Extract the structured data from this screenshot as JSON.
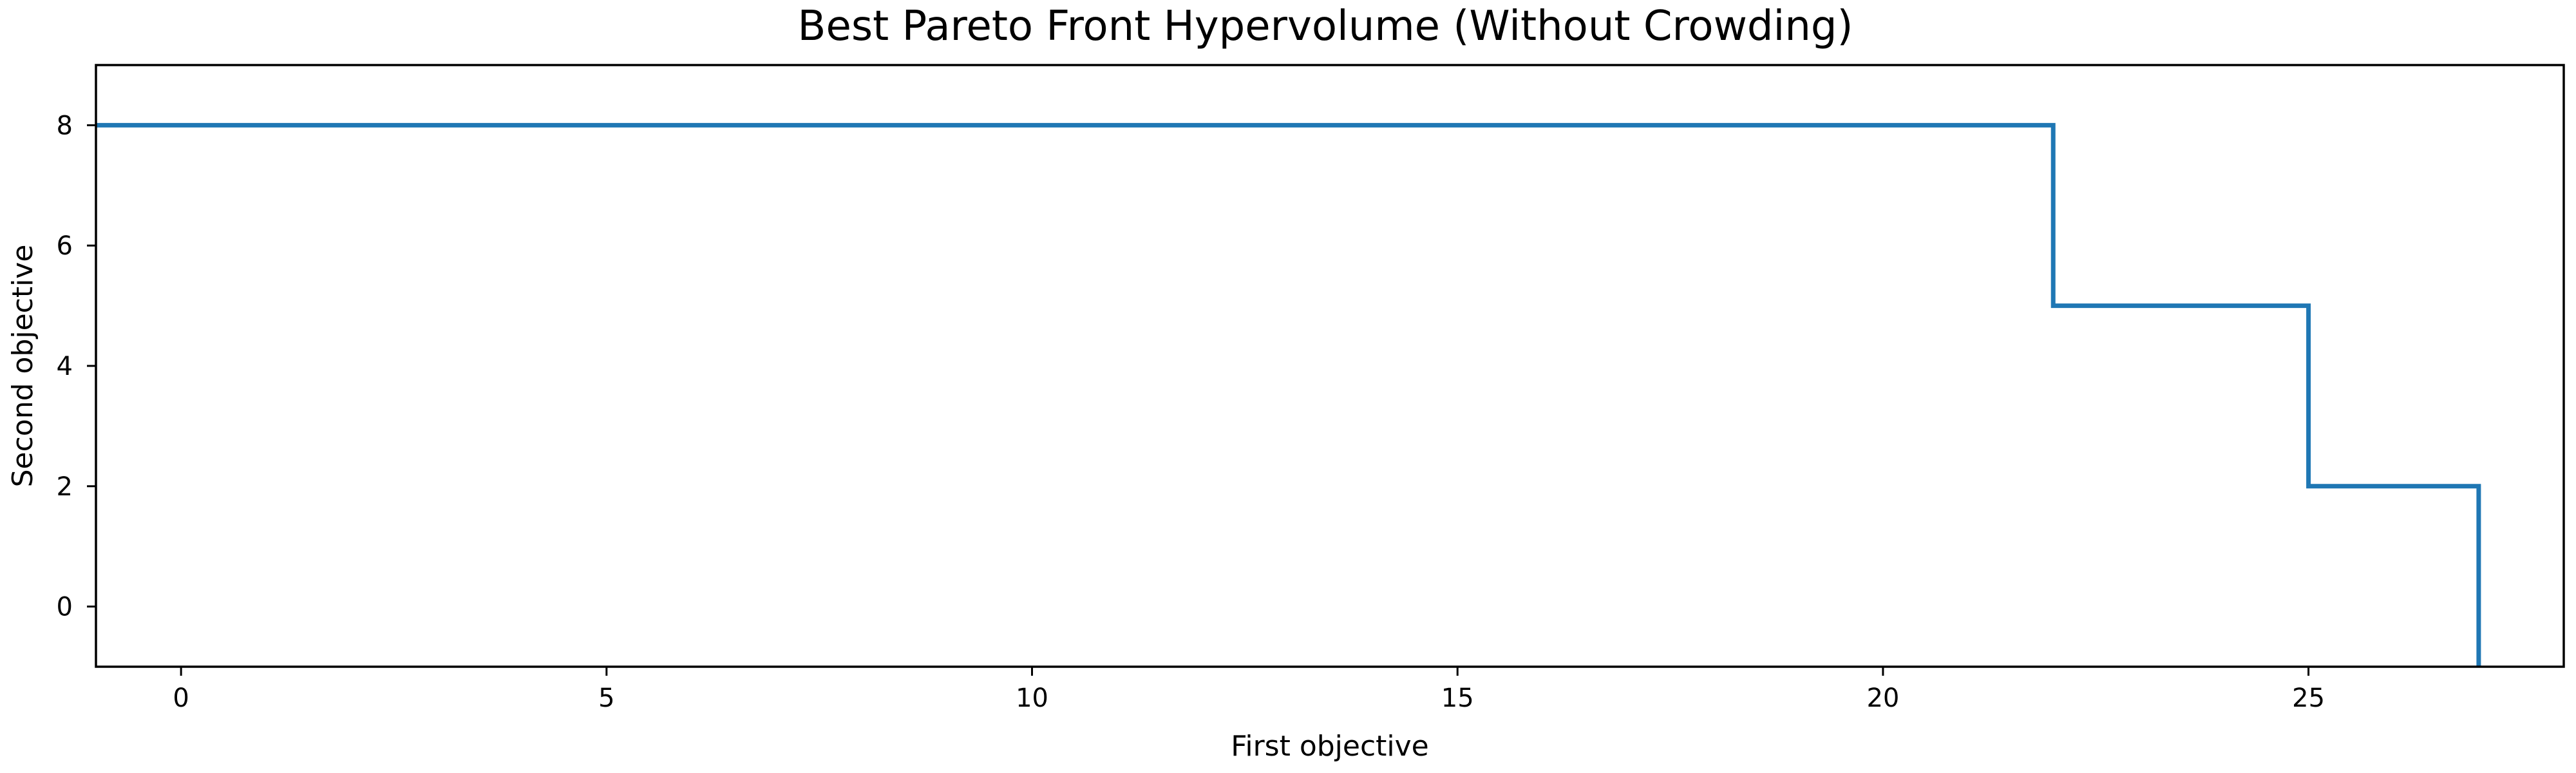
{
  "chart_data": {
    "type": "line",
    "step": "post",
    "title": "Best Pareto Front Hypervolume (Without Crowding)",
    "xlabel": "First objective",
    "ylabel": "Second objective",
    "xlim": [
      -1,
      28
    ],
    "ylim": [
      -1,
      9
    ],
    "xticks": [
      0,
      5,
      10,
      15,
      20,
      25
    ],
    "yticks": [
      0,
      2,
      4,
      6,
      8
    ],
    "grid": false,
    "color": "#1f77b4",
    "series": [
      {
        "x": [
          -1,
          22,
          22,
          25,
          25,
          27,
          27
        ],
        "y": [
          8,
          8,
          5,
          5,
          2,
          2,
          -1
        ]
      }
    ]
  }
}
